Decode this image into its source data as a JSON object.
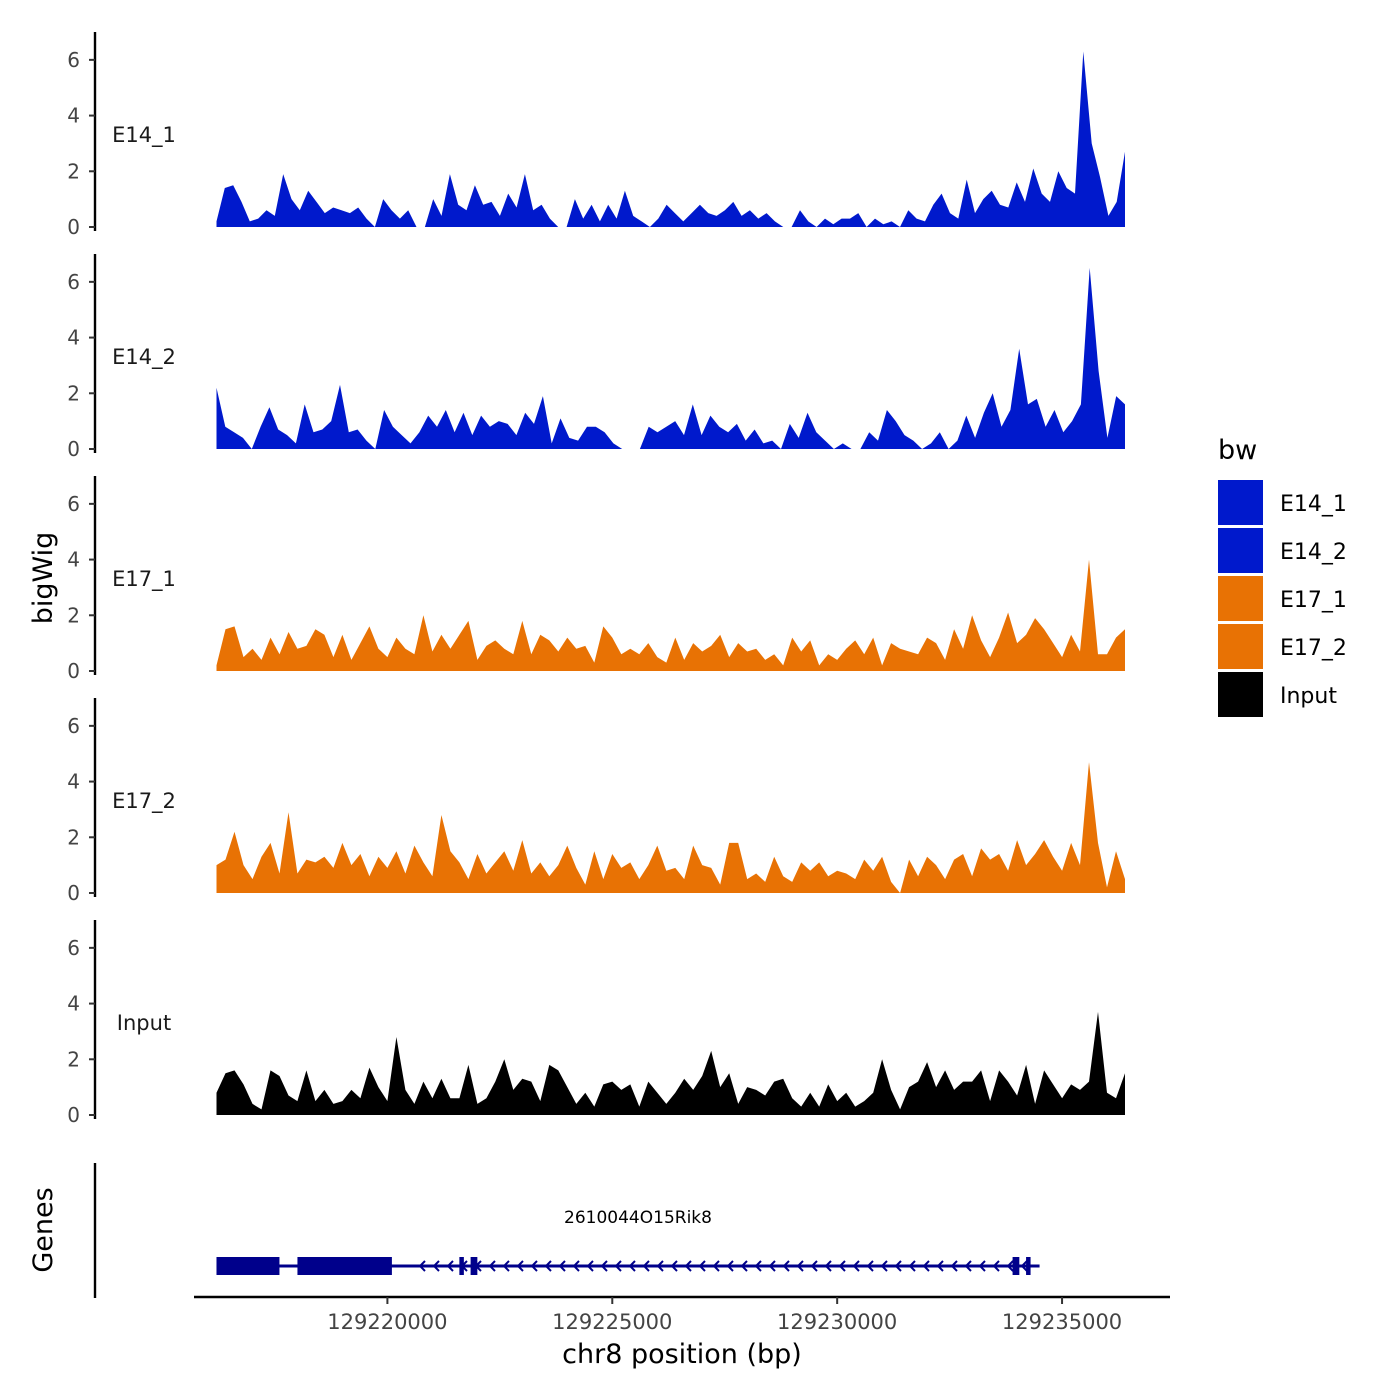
{
  "chart_data": {
    "type": "area",
    "chromosome_label": "chr8 position (bp)",
    "ylabel": "bigWig",
    "ylim": [
      0,
      7
    ],
    "yticks": [
      0,
      2,
      4,
      6
    ],
    "xlim": [
      129215700,
      129237400
    ],
    "x_start": 129216200,
    "x_end": 129236400,
    "xticks": [
      129220000,
      129225000,
      129230000,
      129235000
    ],
    "xtick_labels": [
      "129220000",
      "129225000",
      "129230000",
      "129235000"
    ],
    "legend": {
      "title": "bw",
      "placement": "right",
      "entries": [
        {
          "label": "E14_1",
          "color": "#0019CC"
        },
        {
          "label": "E14_2",
          "color": "#0019CC"
        },
        {
          "label": "E17_1",
          "color": "#E87204"
        },
        {
          "label": "E17_2",
          "color": "#E87204"
        },
        {
          "label": "Input",
          "color": "#000000"
        }
      ]
    },
    "series": [
      {
        "name": "E14_1",
        "color": "#0019CC",
        "values": [
          0.2,
          1.4,
          1.5,
          0.9,
          0.2,
          0.3,
          0.6,
          0.4,
          1.9,
          1.0,
          0.6,
          1.3,
          0.9,
          0.5,
          0.7,
          0.6,
          0.5,
          0.7,
          0.3,
          0,
          1.0,
          0.6,
          0.3,
          0.6,
          0,
          0,
          1.0,
          0.4,
          1.9,
          0.8,
          0.6,
          1.5,
          0.8,
          0.9,
          0.4,
          1.2,
          0.7,
          1.9,
          0.6,
          0.8,
          0.3,
          0,
          0,
          1.0,
          0.3,
          0.8,
          0.2,
          0.8,
          0.3,
          1.3,
          0.4,
          0.2,
          0,
          0.3,
          0.8,
          0.5,
          0.2,
          0.5,
          0.8,
          0.5,
          0.4,
          0.6,
          0.9,
          0.4,
          0.6,
          0.3,
          0.5,
          0.2,
          0,
          0,
          0.6,
          0.2,
          0,
          0.3,
          0.1,
          0.3,
          0.3,
          0.5,
          0,
          0.3,
          0.1,
          0.2,
          0,
          0.6,
          0.3,
          0.2,
          0.8,
          1.2,
          0.5,
          0.3,
          1.7,
          0.5,
          1.0,
          1.3,
          0.8,
          0.7,
          1.6,
          0.9,
          2.1,
          1.2,
          0.9,
          2.0,
          1.4,
          1.2,
          6.3,
          3.0,
          1.8,
          0.4,
          0.9,
          2.7
        ]
      },
      {
        "name": "E14_2",
        "color": "#0019CC",
        "values": [
          2.2,
          0.8,
          0.6,
          0.4,
          0,
          0.8,
          1.5,
          0.7,
          0.5,
          0.2,
          1.6,
          0.6,
          0.7,
          1.0,
          2.3,
          0.6,
          0.7,
          0.3,
          0,
          1.4,
          0.8,
          0.5,
          0.2,
          0.6,
          1.2,
          0.8,
          1.4,
          0.6,
          1.3,
          0.5,
          1.2,
          0.8,
          1.0,
          0.9,
          0.5,
          1.3,
          0.9,
          1.9,
          0.2,
          1.1,
          0.4,
          0.3,
          0.8,
          0.8,
          0.6,
          0.2,
          0,
          0,
          0,
          0.8,
          0.6,
          0.8,
          1.0,
          0.5,
          1.6,
          0.5,
          1.2,
          0.8,
          0.6,
          0.9,
          0.3,
          0.7,
          0.2,
          0.3,
          0,
          0.9,
          0.4,
          1.3,
          0.6,
          0.3,
          0,
          0.2,
          0,
          0,
          0.6,
          0.3,
          1.4,
          1.0,
          0.5,
          0.3,
          0,
          0.2,
          0.6,
          0,
          0.3,
          1.2,
          0.4,
          1.3,
          2.0,
          0.8,
          1.4,
          3.6,
          1.6,
          1.8,
          0.8,
          1.4,
          0.6,
          1.0,
          1.6,
          6.5,
          2.8,
          0.4,
          1.9,
          1.6
        ]
      },
      {
        "name": "E17_1",
        "color": "#E87204",
        "values": [
          0.2,
          1.5,
          1.6,
          0.5,
          0.8,
          0.4,
          1.2,
          0.6,
          1.4,
          0.8,
          0.9,
          1.5,
          1.3,
          0.5,
          1.3,
          0.4,
          1.0,
          1.6,
          0.8,
          0.5,
          1.2,
          0.8,
          0.6,
          2.0,
          0.7,
          1.3,
          0.8,
          1.3,
          1.8,
          0.4,
          0.9,
          1.1,
          0.8,
          0.6,
          1.8,
          0.6,
          1.3,
          1.1,
          0.7,
          1.2,
          0.8,
          0.9,
          0.3,
          1.6,
          1.2,
          0.6,
          0.8,
          0.6,
          1.0,
          0.5,
          0.3,
          1.2,
          0.4,
          1.0,
          0.7,
          0.9,
          1.3,
          0.5,
          1.0,
          0.7,
          0.8,
          0.4,
          0.6,
          0.2,
          1.2,
          0.7,
          1.1,
          0.2,
          0.6,
          0.4,
          0.8,
          1.1,
          0.6,
          1.2,
          0.2,
          1.0,
          0.8,
          0.7,
          0.6,
          1.2,
          1.0,
          0.4,
          1.5,
          0.8,
          2.0,
          1.1,
          0.5,
          1.2,
          2.1,
          1.0,
          1.3,
          1.9,
          1.5,
          1.0,
          0.5,
          1.3,
          0.7,
          4.0,
          0.6,
          0.6,
          1.2,
          1.5
        ]
      },
      {
        "name": "E17_2",
        "color": "#E87204",
        "values": [
          1.0,
          1.2,
          2.2,
          1.0,
          0.5,
          1.3,
          1.8,
          0.7,
          2.9,
          0.7,
          1.2,
          1.1,
          1.3,
          0.9,
          1.8,
          1.0,
          1.4,
          0.6,
          1.3,
          0.9,
          1.5,
          0.7,
          1.7,
          1.1,
          0.6,
          2.8,
          1.5,
          1.1,
          0.5,
          1.4,
          0.7,
          1.1,
          1.5,
          0.8,
          1.9,
          0.7,
          1.1,
          0.6,
          1.0,
          1.7,
          0.9,
          0.3,
          1.5,
          0.5,
          1.4,
          0.9,
          1.1,
          0.5,
          1.0,
          1.7,
          0.8,
          0.9,
          0.5,
          1.7,
          1.0,
          0.9,
          0.3,
          1.8,
          1.8,
          0.5,
          0.7,
          0.4,
          1.3,
          0.6,
          0.4,
          1.1,
          0.8,
          1.1,
          0.6,
          0.8,
          0.7,
          0.5,
          1.2,
          0.8,
          1.3,
          0.4,
          0,
          1.2,
          0.6,
          1.3,
          1.0,
          0.5,
          1.2,
          1.4,
          0.6,
          1.6,
          1.2,
          1.4,
          0.8,
          1.9,
          1.0,
          1.4,
          1.9,
          1.3,
          0.8,
          1.8,
          1.0,
          4.7,
          1.8,
          0.2,
          1.5,
          0.5
        ]
      },
      {
        "name": "Input",
        "color": "#000000",
        "values": [
          0.8,
          1.5,
          1.6,
          1.1,
          0.4,
          0.2,
          1.6,
          1.4,
          0.7,
          0.5,
          1.6,
          0.5,
          0.9,
          0.4,
          0.5,
          0.9,
          0.6,
          1.7,
          1.0,
          0.5,
          2.8,
          0.9,
          0.4,
          1.2,
          0.6,
          1.3,
          0.6,
          0.6,
          1.8,
          0.4,
          0.6,
          1.2,
          2.0,
          0.9,
          1.3,
          1.2,
          0.5,
          1.8,
          1.6,
          1.0,
          0.4,
          0.8,
          0.3,
          1.1,
          1.2,
          0.9,
          1.1,
          0.3,
          1.2,
          0.8,
          0.4,
          0.8,
          1.3,
          0.9,
          1.4,
          2.3,
          1.0,
          1.5,
          0.4,
          1.0,
          0.9,
          0.7,
          1.2,
          1.3,
          0.6,
          0.3,
          0.8,
          0.3,
          1.1,
          0.5,
          0.8,
          0.3,
          0.5,
          0.8,
          2.0,
          0.9,
          0.2,
          1.0,
          1.2,
          1.9,
          1.0,
          1.6,
          0.9,
          1.2,
          1.2,
          1.6,
          0.5,
          1.6,
          1.2,
          0.7,
          1.8,
          0.4,
          1.6,
          1.1,
          0.6,
          1.1,
          0.9,
          1.2,
          3.7,
          0.8,
          0.6,
          1.5
        ]
      }
    ],
    "genes": {
      "track_label": "Genes",
      "name": "2610044O15Rik8",
      "strand": "-",
      "line_start": 129216200,
      "line_end": 129234500,
      "exons": [
        {
          "start": 129216200,
          "end": 129217600
        },
        {
          "start": 129218000,
          "end": 129220100
        },
        {
          "start": 129221600,
          "end": 129221700
        },
        {
          "start": 129221850,
          "end": 129222000
        },
        {
          "start": 129233900,
          "end": 129234050
        },
        {
          "start": 129234200,
          "end": 129234300
        }
      ]
    }
  }
}
